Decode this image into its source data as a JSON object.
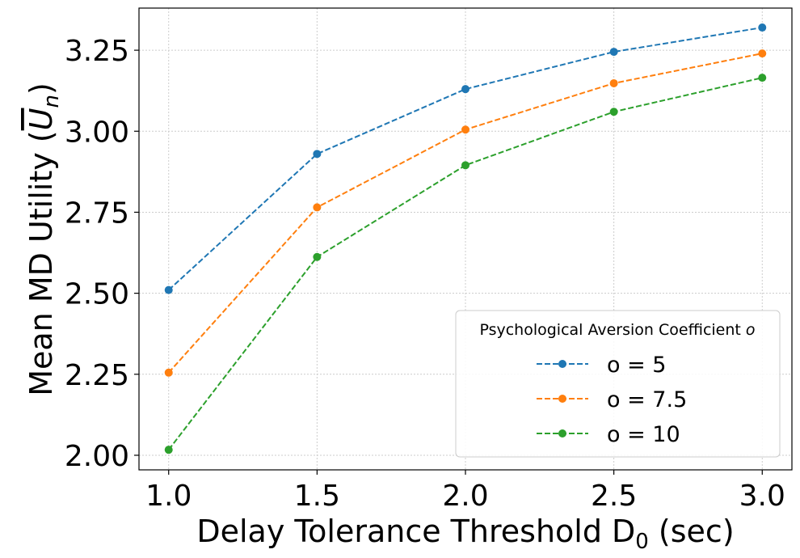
{
  "chart_data": {
    "type": "line",
    "x": [
      1.0,
      1.5,
      2.0,
      2.5,
      3.0
    ],
    "xticks": [
      "1.0",
      "1.5",
      "2.0",
      "2.5",
      "3.0"
    ],
    "yticks": [
      "2.00",
      "2.25",
      "2.50",
      "2.75",
      "3.00",
      "3.25"
    ],
    "ytick_values": [
      2.0,
      2.25,
      2.5,
      2.75,
      3.0,
      3.25
    ],
    "xlim": [
      0.9,
      3.1
    ],
    "ylim": [
      1.955,
      3.38
    ],
    "xlabel": "Delay Tolerance Threshold D",
    "xlabel_sub": "0",
    "xlabel_suffix": " (sec)",
    "ylabel": "Mean MD Utility (",
    "ylabel_var": "U",
    "ylabel_sub": "n",
    "ylabel_suffix": ")",
    "grid": true,
    "legend": {
      "title": "Psychological Aversion Coefficient ",
      "title_var": "o",
      "placement": "lower-right"
    },
    "series": [
      {
        "name": "o = 5",
        "color": "#1f77b4",
        "values": [
          2.51,
          2.93,
          3.13,
          3.245,
          3.32
        ]
      },
      {
        "name": "o = 7.5",
        "color": "#ff7f0e",
        "values": [
          2.255,
          2.765,
          3.005,
          3.148,
          3.24
        ]
      },
      {
        "name": "o = 10",
        "color": "#2ca02c",
        "values": [
          2.017,
          2.612,
          2.895,
          3.06,
          3.165
        ]
      }
    ]
  }
}
